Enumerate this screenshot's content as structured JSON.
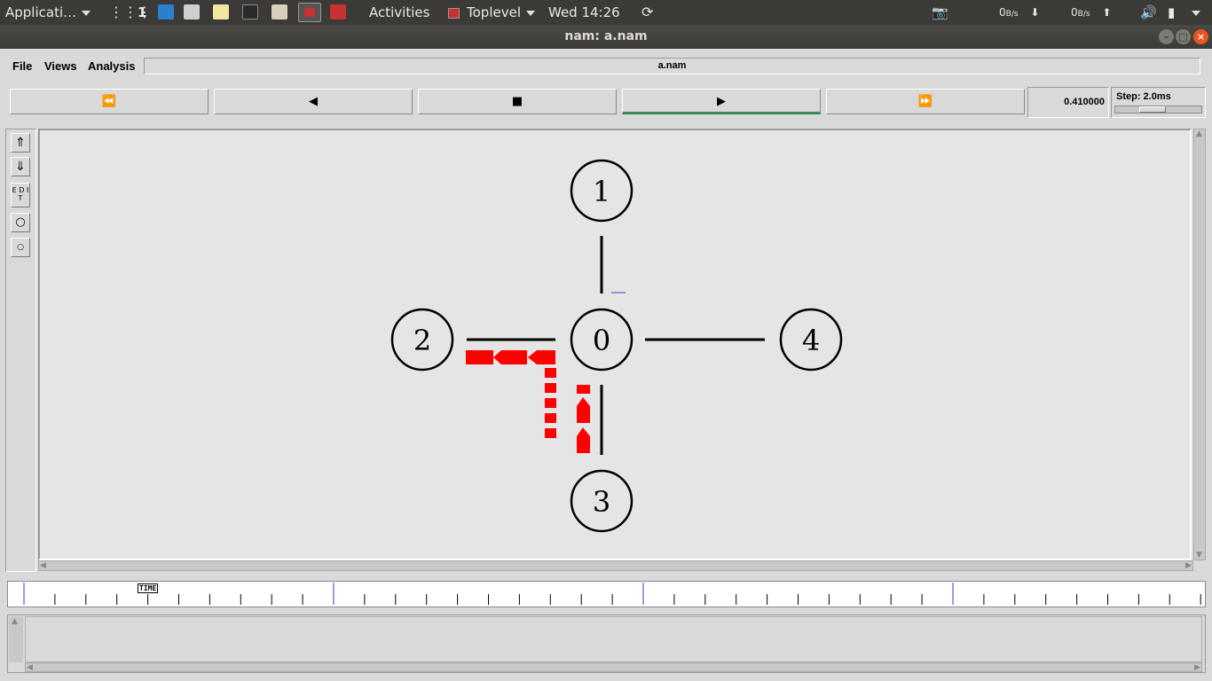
{
  "topbar": {
    "applications": "Applicati…",
    "workspace": "1",
    "activities": "Activities",
    "toplevel": "Toplevel",
    "clock": "Wed 14:26",
    "net_down": "0",
    "net_down_unit": "B/s",
    "net_up": "0",
    "net_up_unit": "B/s"
  },
  "window": {
    "title": "nam: a.nam"
  },
  "menu": {
    "file": "File",
    "views": "Views",
    "analysis": "Analysis",
    "filename": "a.nam"
  },
  "controls": {
    "rewind": "⏪",
    "back": "◀",
    "stop": "■",
    "play": "▶",
    "forward": "⏩",
    "time": "0.410000",
    "step": "Step: 2.0ms",
    "step_slider_fraction": 0.4
  },
  "tools": {
    "edit_label": "E D I T"
  },
  "network": {
    "nodes": [
      {
        "id": "1"
      },
      {
        "id": "2"
      },
      {
        "id": "0"
      },
      {
        "id": "4"
      },
      {
        "id": "3"
      }
    ],
    "packet_color": "#ff0000"
  },
  "timeline": {
    "label": "TIME"
  }
}
